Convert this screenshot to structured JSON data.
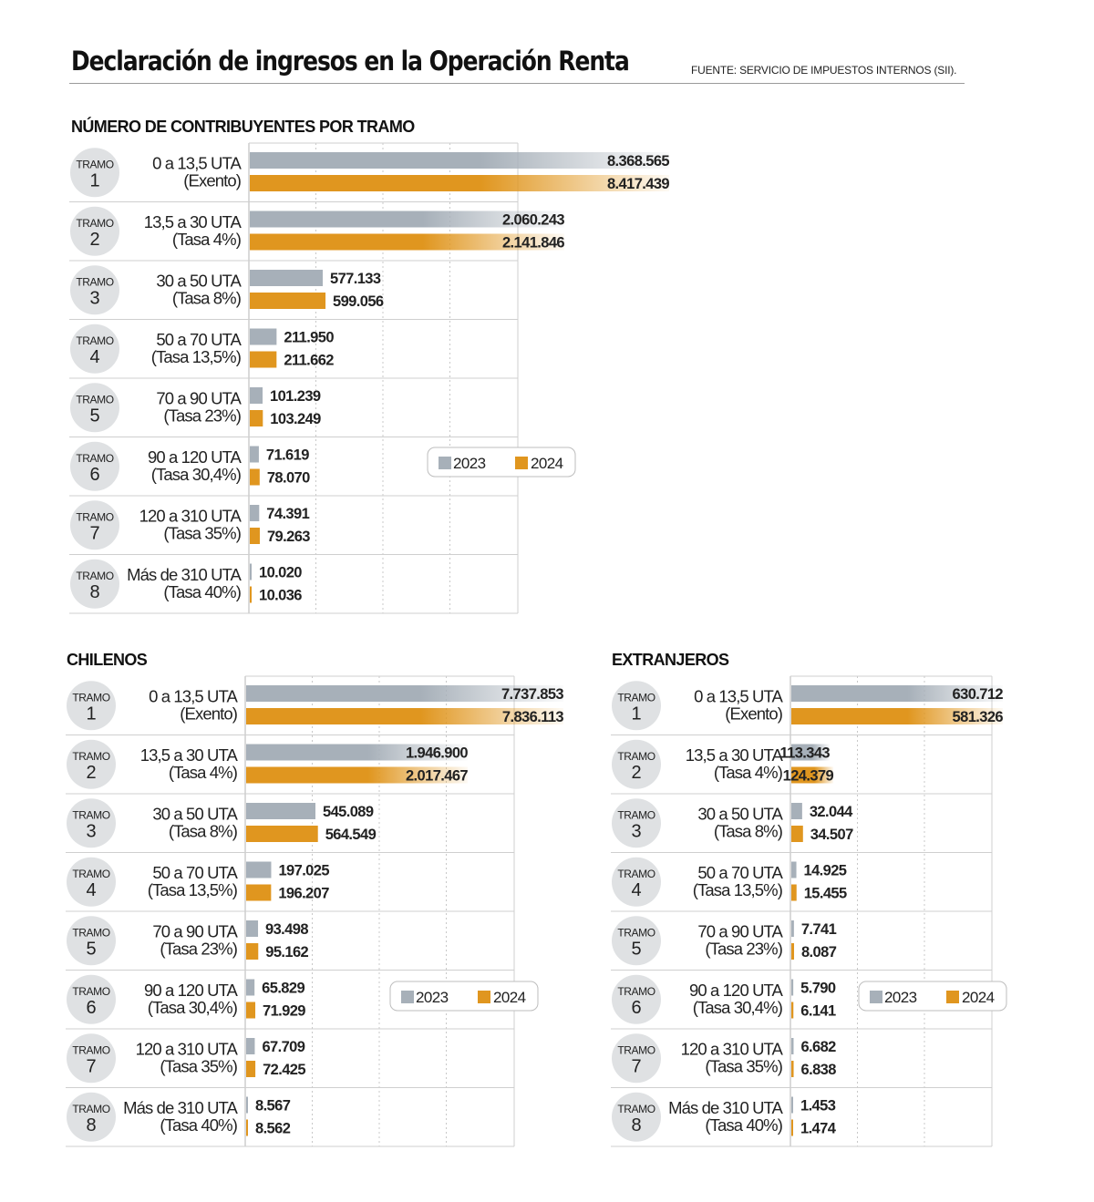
{
  "header": {
    "title": "Declaración de ingresos en la Operación Renta",
    "source": "FUENTE: SERVICIO DE IMPUESTOS INTERNOS (SII)."
  },
  "colors": {
    "y2023": "#a7b0b9",
    "y2024": "#e0961f",
    "grid": "#c8c8c8",
    "circle": "#dfe1e3"
  },
  "tramo_word": "TRAMO",
  "chart_data": [
    {
      "type": "bar",
      "title": "NÚMERO DE CONTRIBUYENTES POR TRAMO",
      "tramos": [
        "1",
        "2",
        "3",
        "4",
        "5",
        "6",
        "7",
        "8"
      ],
      "categories": [
        "0 a 13,5 UTA",
        "13,5 a 30 UTA",
        "30 a 50 UTA",
        "50 a 70 UTA",
        "70 a 90 UTA",
        "90 a 120 UTA",
        "120 a 310 UTA",
        "Más de 310 UTA"
      ],
      "rates": [
        "(Exento)",
        "(Tasa 4%)",
        "(Tasa 8%)",
        "(Tasa 13,5%)",
        "(Tasa 23%)",
        "(Tasa 30,4%)",
        "(Tasa 35%)",
        "(Tasa 40%)"
      ],
      "series": [
        {
          "name": "2023",
          "values": [
            8368565,
            2060243,
            577133,
            211950,
            101239,
            71619,
            74391,
            10020
          ],
          "labels": [
            "8.368.565",
            "2.060.243",
            "577.133",
            "211.950",
            "101.239",
            "71.619",
            "74.391",
            "10.020"
          ]
        },
        {
          "name": "2024",
          "values": [
            8417439,
            2141846,
            599056,
            211662,
            103249,
            78070,
            79263,
            10036
          ],
          "labels": [
            "8.417.439",
            "2.141.846",
            "599.056",
            "211.662",
            "103.249",
            "78.070",
            "79.263",
            "10.036"
          ]
        }
      ],
      "legend": [
        "2023",
        "2024"
      ]
    },
    {
      "type": "bar",
      "title": "CHILENOS",
      "tramos": [
        "1",
        "2",
        "3",
        "4",
        "5",
        "6",
        "7",
        "8"
      ],
      "categories": [
        "0 a 13,5 UTA",
        "13,5 a 30 UTA",
        "30 a 50 UTA",
        "50 a 70 UTA",
        "70 a 90 UTA",
        "90 a 120 UTA",
        "120 a 310 UTA",
        "Más de 310 UTA"
      ],
      "rates": [
        "(Exento)",
        "(Tasa 4%)",
        "(Tasa 8%)",
        "(Tasa 13,5%)",
        "(Tasa 23%)",
        "(Tasa 30,4%)",
        "(Tasa 35%)",
        "(Tasa 40%)"
      ],
      "series": [
        {
          "name": "2023",
          "values": [
            7737853,
            1946900,
            545089,
            197025,
            93498,
            65829,
            67709,
            8567
          ],
          "labels": [
            "7.737.853",
            "1.946.900",
            "545.089",
            "197.025",
            "93.498",
            "65.829",
            "67.709",
            "8.567"
          ]
        },
        {
          "name": "2024",
          "values": [
            7836113,
            2017467,
            564549,
            196207,
            95162,
            71929,
            72425,
            8562
          ],
          "labels": [
            "7.836.113",
            "2.017.467",
            "564.549",
            "196.207",
            "95.162",
            "71.929",
            "72.425",
            "8.562"
          ]
        }
      ],
      "legend": [
        "2023",
        "2024"
      ]
    },
    {
      "type": "bar",
      "title": "EXTRANJEROS",
      "tramos": [
        "1",
        "2",
        "3",
        "4",
        "5",
        "6",
        "7",
        "8"
      ],
      "categories": [
        "0 a 13,5 UTA",
        "13,5 a 30 UTA",
        "30 a 50 UTA",
        "50 a 70 UTA",
        "70 a 90 UTA",
        "90 a 120 UTA",
        "120 a 310 UTA",
        "Más de 310 UTA"
      ],
      "rates": [
        "(Exento)",
        "(Tasa 4%)",
        "(Tasa 8%)",
        "(Tasa 13,5%)",
        "(Tasa 23%)",
        "(Tasa 30,4%)",
        "(Tasa 35%)",
        "(Tasa 40%)"
      ],
      "series": [
        {
          "name": "2023",
          "values": [
            630712,
            113343,
            32044,
            14925,
            7741,
            5790,
            6682,
            1453
          ],
          "labels": [
            "630.712",
            "113.343",
            "32.044",
            "14.925",
            "7.741",
            "5.790",
            "6.682",
            "1.453"
          ]
        },
        {
          "name": "2024",
          "values": [
            581326,
            124379,
            34507,
            15455,
            8087,
            6141,
            6838,
            1474
          ],
          "labels": [
            "581.326",
            "124.379",
            "34.507",
            "15.455",
            "8.087",
            "6.141",
            "6.838",
            "1.474"
          ]
        }
      ],
      "legend": [
        "2023",
        "2024"
      ]
    }
  ]
}
